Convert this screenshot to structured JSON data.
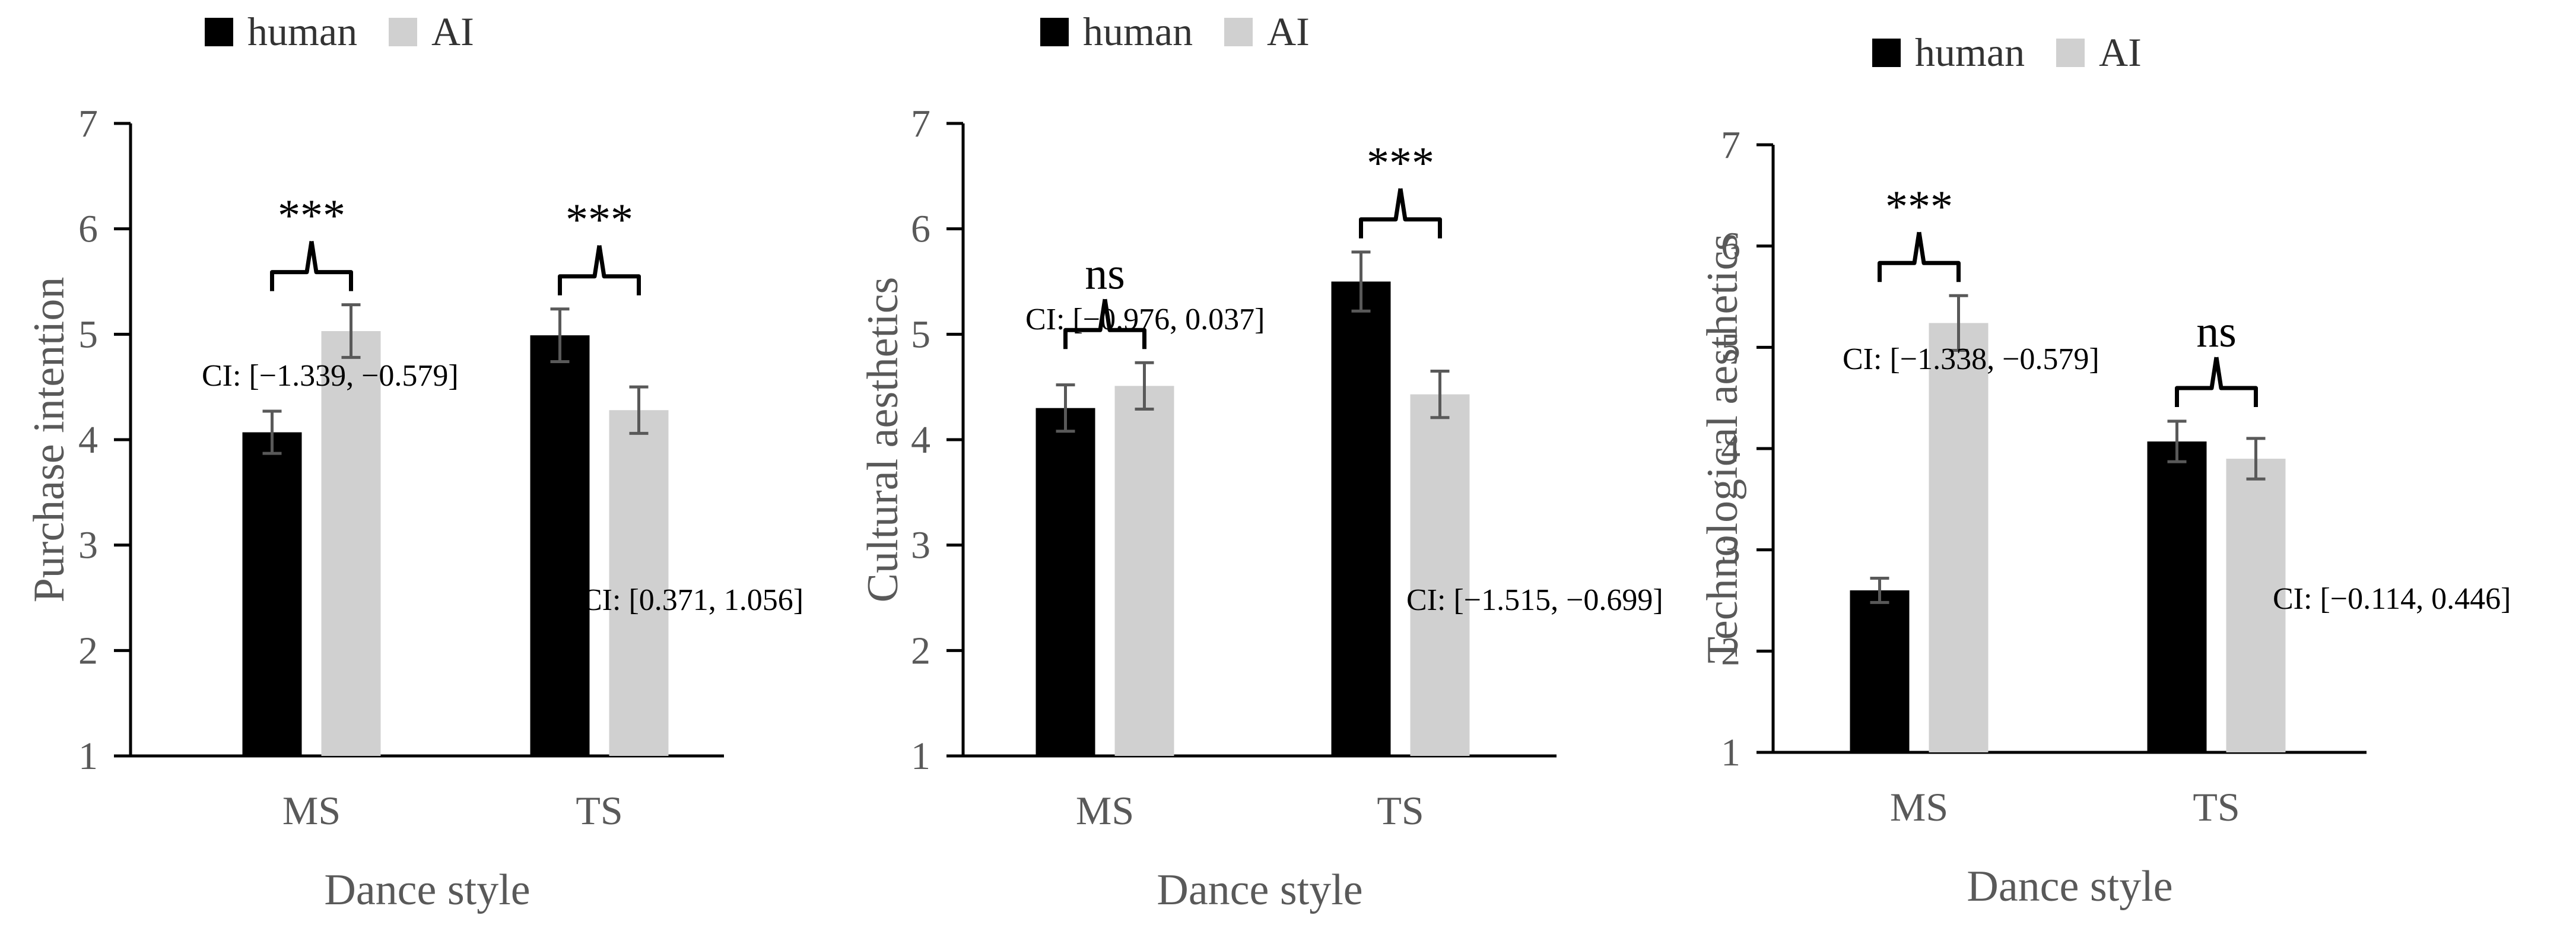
{
  "colors": {
    "human": "#000000",
    "ai": "#d0d0d0",
    "axis": "#000000",
    "error_bar": "#595959",
    "text": "#595959"
  },
  "chart_data": [
    {
      "type": "bar",
      "categories": [
        "MS",
        "TS"
      ],
      "series": [
        {
          "name": "human",
          "values": [
            4.07,
            4.99
          ],
          "errors": [
            0.2,
            0.25
          ]
        },
        {
          "name": "AI",
          "values": [
            5.03,
            4.28
          ],
          "errors": [
            0.25,
            0.22
          ]
        }
      ],
      "legend": {
        "position": "top-left",
        "labels": [
          "human",
          "AI"
        ]
      },
      "xlabel": "Dance style",
      "ylabel": "Purchase intention",
      "ylim": [
        1,
        7
      ],
      "yticks": [
        "1",
        "2",
        "3",
        "4",
        "5",
        "6",
        "7"
      ],
      "significance": [
        "***",
        "***"
      ],
      "ci_labels": [
        "CI: [−1.339,  −0.579]",
        "CI: [0.371, 1.056]"
      ],
      "grid": false
    },
    {
      "type": "bar",
      "categories": [
        "MS",
        "TS"
      ],
      "series": [
        {
          "name": "human",
          "values": [
            4.3,
            5.5
          ],
          "errors": [
            0.22,
            0.28
          ]
        },
        {
          "name": "AI",
          "values": [
            4.51,
            4.43
          ],
          "errors": [
            0.22,
            0.22
          ]
        }
      ],
      "legend": {
        "position": "top-left",
        "labels": [
          "human",
          "AI"
        ]
      },
      "xlabel": "Dance style",
      "ylabel": "Cultural aesthetics",
      "ylim": [
        1,
        7
      ],
      "yticks": [
        "1",
        "2",
        "3",
        "4",
        "5",
        "6",
        "7"
      ],
      "significance": [
        "ns",
        "***"
      ],
      "ci_labels": [
        "CI: [−0.976, 0.037]",
        "CI: [−1.515,  −0.699]"
      ],
      "grid": false
    },
    {
      "type": "bar",
      "categories": [
        "MS",
        "TS"
      ],
      "series": [
        {
          "name": "human",
          "values": [
            2.6,
            4.07
          ],
          "errors": [
            0.12,
            0.2
          ]
        },
        {
          "name": "AI",
          "values": [
            5.24,
            3.9
          ],
          "errors": [
            0.27,
            0.2
          ]
        }
      ],
      "legend": {
        "position": "top-left",
        "labels": [
          "human",
          "AI"
        ]
      },
      "xlabel": "Dance style",
      "ylabel": "Technological aesthetics",
      "ylim": [
        1,
        7
      ],
      "yticks": [
        "1",
        "2",
        "3",
        "4",
        "5",
        "6",
        "7"
      ],
      "significance": [
        "***",
        "ns"
      ],
      "ci_labels": [
        "CI: [−1.338,  −0.579]",
        "CI: [−0.114, 0.446]"
      ],
      "grid": false
    }
  ]
}
